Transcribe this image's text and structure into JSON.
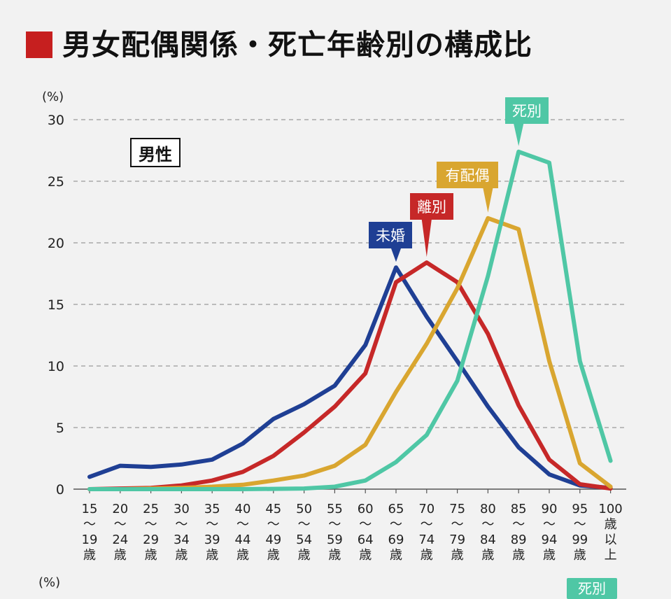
{
  "title": "男女配偶関係・死亡年齢別の構成比",
  "y_unit": "(%)",
  "bottom_y_unit": "(%)",
  "bottom_tag": "死別",
  "chart_data": {
    "type": "line",
    "panel_label": "男性",
    "y_unit": "(%)",
    "ylim": [
      0,
      30
    ],
    "yticks": [
      0,
      5,
      10,
      15,
      20,
      25,
      30
    ],
    "grid": true,
    "categories": [
      "15〜19歳",
      "20〜24歳",
      "25〜29歳",
      "30〜34歳",
      "35〜39歳",
      "40〜44歳",
      "45〜49歳",
      "50〜54歳",
      "55〜59歳",
      "60〜64歳",
      "65〜69歳",
      "70〜74歳",
      "75〜79歳",
      "80〜84歳",
      "85〜89歳",
      "90〜94歳",
      "95〜99歳",
      "100歳以上"
    ],
    "category_tick_lines": [
      [
        "15",
        "〜",
        "19",
        "歳"
      ],
      [
        "20",
        "〜",
        "24",
        "歳"
      ],
      [
        "25",
        "〜",
        "29",
        "歳"
      ],
      [
        "30",
        "〜",
        "34",
        "歳"
      ],
      [
        "35",
        "〜",
        "39",
        "歳"
      ],
      [
        "40",
        "〜",
        "44",
        "歳"
      ],
      [
        "45",
        "〜",
        "49",
        "歳"
      ],
      [
        "50",
        "〜",
        "54",
        "歳"
      ],
      [
        "55",
        "〜",
        "59",
        "歳"
      ],
      [
        "60",
        "〜",
        "64",
        "歳"
      ],
      [
        "65",
        "〜",
        "69",
        "歳"
      ],
      [
        "70",
        "〜",
        "74",
        "歳"
      ],
      [
        "75",
        "〜",
        "79",
        "歳"
      ],
      [
        "80",
        "〜",
        "84",
        "歳"
      ],
      [
        "85",
        "〜",
        "89",
        "歳"
      ],
      [
        "90",
        "〜",
        "94",
        "歳"
      ],
      [
        "95",
        "〜",
        "99",
        "歳"
      ],
      [
        "100",
        "歳",
        "以",
        "上"
      ]
    ],
    "series": [
      {
        "name": "未婚",
        "color": "#1f3f94",
        "values": [
          1.0,
          1.9,
          1.8,
          2.0,
          2.4,
          3.7,
          5.7,
          6.9,
          8.4,
          11.7,
          18.0,
          14.0,
          10.4,
          6.7,
          3.4,
          1.2,
          0.3,
          0.1
        ]
      },
      {
        "name": "離別",
        "color": "#c62828",
        "values": [
          0.0,
          0.05,
          0.1,
          0.3,
          0.7,
          1.4,
          2.7,
          4.6,
          6.7,
          9.4,
          16.8,
          18.4,
          16.8,
          12.6,
          6.8,
          2.4,
          0.4,
          0.05
        ]
      },
      {
        "name": "有配偶",
        "color": "#d9a630",
        "values": [
          0.0,
          0.0,
          0.05,
          0.1,
          0.2,
          0.35,
          0.7,
          1.1,
          1.9,
          3.6,
          7.9,
          11.8,
          16.3,
          22.0,
          21.1,
          10.4,
          2.1,
          0.2
        ]
      },
      {
        "name": "死別",
        "color": "#4fc7a5",
        "values": [
          0.0,
          0.0,
          0.0,
          0.0,
          0.0,
          0.0,
          0.02,
          0.05,
          0.2,
          0.7,
          2.2,
          4.4,
          8.8,
          17.3,
          27.4,
          26.5,
          10.4,
          2.3
        ]
      }
    ]
  }
}
